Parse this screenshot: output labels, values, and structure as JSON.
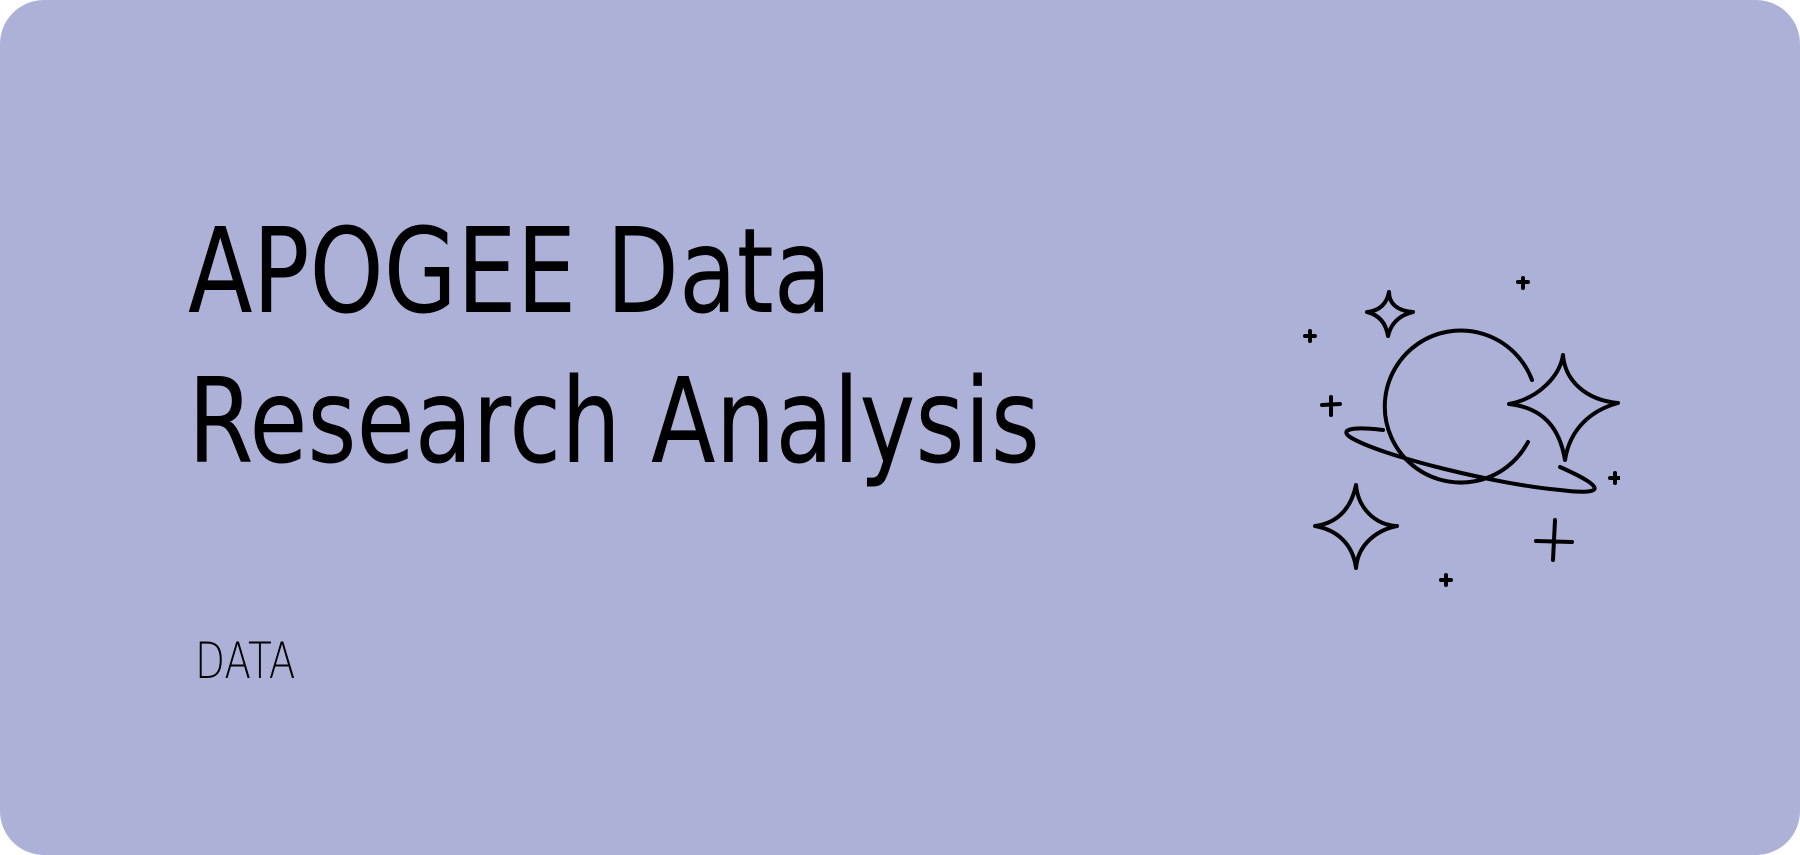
{
  "card": {
    "background_color": "#adb1d8",
    "title_lines": [
      "APOGEE Data",
      "Research Analysis"
    ],
    "tag": "DATA",
    "illustration": "planet-with-stars-icon"
  }
}
